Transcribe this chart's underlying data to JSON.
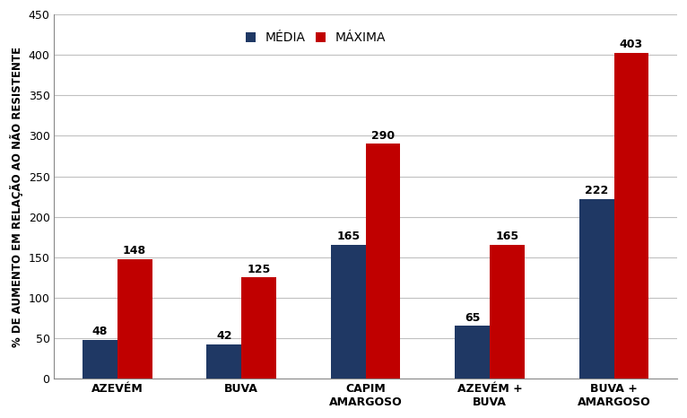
{
  "categories": [
    "AZEVÉM",
    "BUVA",
    "CAPIM\nAMARGOSO",
    "AZEVÉM +\nBUVA",
    "BUVA +\nAMARGOSO"
  ],
  "media": [
    48,
    42,
    165,
    65,
    222
  ],
  "maxima": [
    148,
    125,
    290,
    165,
    403
  ],
  "color_media": "#1F3864",
  "color_maxima": "#C00000",
  "legend_media": "MÉDIA",
  "legend_maxima": "MÁXIMA",
  "ylabel": "% DE AUMENTO EM RELAÇÃO AO NÃO RESISTENTE",
  "ylim": [
    0,
    450
  ],
  "yticks": [
    0,
    50,
    100,
    150,
    200,
    250,
    300,
    350,
    400,
    450
  ],
  "bar_width": 0.28,
  "label_fontsize": 9,
  "tick_fontsize": 9,
  "legend_fontsize": 10,
  "ylabel_fontsize": 8.5,
  "background_color": "#FFFFFF",
  "grid_color": "#C0C0C0"
}
